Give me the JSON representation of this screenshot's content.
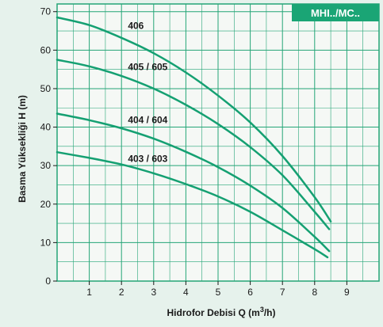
{
  "chart_data": {
    "type": "line",
    "badge": "MHI../MC..",
    "xlabel": "Hidrofor Debisi Q (m",
    "xlabel_sup": "3",
    "xlabel_tail": "/h)",
    "ylabel": "Basma Yüksekliği H (m)",
    "xlim": [
      0,
      10
    ],
    "ylim": [
      0,
      72
    ],
    "xticks": [
      1,
      2,
      3,
      4,
      5,
      6,
      7,
      8,
      9
    ],
    "yticks": [
      0,
      10,
      20,
      30,
      40,
      50,
      60,
      70
    ],
    "grid": true,
    "series": [
      {
        "name": "406",
        "x": [
          0,
          1,
          2,
          3,
          4,
          5,
          6,
          7,
          8,
          8.5
        ],
        "y": [
          68.5,
          66.5,
          63.2,
          59.2,
          54.2,
          48.2,
          41.2,
          32.5,
          21.8,
          15.5
        ],
        "label_at": [
          2.2,
          65.5
        ]
      },
      {
        "name": "405 / 605",
        "x": [
          0,
          1,
          2,
          3,
          4,
          5,
          6,
          7,
          8,
          8.45
        ],
        "y": [
          57.5,
          55.8,
          53.3,
          50.0,
          45.8,
          40.8,
          34.8,
          27.5,
          18.0,
          13.5
        ],
        "label_at": [
          2.2,
          54.8
        ]
      },
      {
        "name": "404 / 604",
        "x": [
          0,
          1,
          2,
          3,
          4,
          5,
          6,
          7,
          8,
          8.45
        ],
        "y": [
          43.5,
          41.8,
          39.7,
          37.0,
          33.6,
          29.6,
          24.8,
          19.0,
          11.5,
          7.8
        ],
        "label_at": [
          2.2,
          41.0
        ]
      },
      {
        "name": "403 / 603",
        "x": [
          0,
          1,
          2,
          3,
          4,
          5,
          6,
          7,
          8,
          8.4
        ],
        "y": [
          33.5,
          32.0,
          30.3,
          28.0,
          25.2,
          22.0,
          18.0,
          13.2,
          8.3,
          6.2
        ],
        "label_at": [
          2.2,
          31.0
        ]
      }
    ],
    "colors": {
      "curve": "#15a072",
      "grid": "#25a577",
      "badge_bg": "#1aa575",
      "plot_bg": "#f5f8f5",
      "page_bg": "#e6f2ec"
    }
  }
}
